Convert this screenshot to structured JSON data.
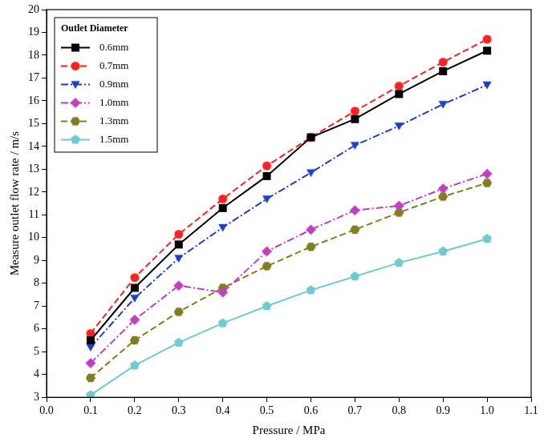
{
  "chart_data": {
    "type": "line",
    "xlabel": "Pressure / MPa",
    "ylabel": "Measure outlet flow rate / m/s",
    "legend_title": "Outlet Diameter",
    "legend": "upper left",
    "grid": false,
    "x": [
      0.1,
      0.2,
      0.3,
      0.4,
      0.5,
      0.6,
      0.7,
      0.8,
      0.9,
      1.0
    ],
    "xlim": [
      0,
      1.1
    ],
    "xticks": [
      {
        "value": 0,
        "label": "0.0"
      },
      0.1,
      0.2,
      0.3,
      0.4,
      0.5,
      0.6,
      0.7,
      0.8,
      0.9,
      {
        "value": 1,
        "label": "1.0"
      },
      1.1
    ],
    "ylim": [
      3,
      20
    ],
    "yticks": [
      3,
      4,
      5,
      6,
      7,
      8,
      9,
      10,
      11,
      12,
      13,
      14,
      15,
      16,
      17,
      18,
      19,
      20
    ],
    "series": [
      {
        "name": "0.6mm",
        "color": "#000000",
        "marker": "square",
        "line_style": "solid",
        "values": [
          5.5,
          7.8,
          9.7,
          11.3,
          12.7,
          14.4,
          15.2,
          16.3,
          17.3,
          18.2
        ]
      },
      {
        "name": "0.7mm",
        "color": "#ff2020",
        "marker": "circle",
        "line_style": "dashed",
        "values": [
          5.8,
          8.25,
          10.15,
          11.7,
          13.15,
          14.4,
          15.55,
          16.65,
          17.7,
          18.7
        ]
      },
      {
        "name": "0.9mm",
        "color": "#1f3fbf",
        "marker": "triangle-down",
        "line_style": "dashdot",
        "values": [
          5.2,
          7.35,
          9.1,
          10.45,
          11.7,
          12.85,
          14.05,
          14.9,
          15.85,
          16.7
        ]
      },
      {
        "name": "1.0mm",
        "color": "#c040c0",
        "marker": "diamond",
        "line_style": "dashdot",
        "values": [
          4.5,
          6.4,
          7.9,
          7.6,
          9.4,
          10.35,
          11.2,
          11.4,
          12.15,
          12.8
        ]
      },
      {
        "name": "1.3mm",
        "color": "#7f7f20",
        "marker": "hexagon",
        "line_style": "dashed",
        "values": [
          3.85,
          5.5,
          6.75,
          7.8,
          8.75,
          9.6,
          10.35,
          11.1,
          11.8,
          12.4
        ]
      },
      {
        "name": "1.5mm",
        "color": "#70cccc",
        "marker": "pentagon",
        "line_style": "solid",
        "values": [
          3.1,
          4.4,
          5.4,
          6.25,
          7.0,
          7.7,
          8.3,
          8.9,
          9.4,
          9.95
        ]
      }
    ]
  }
}
